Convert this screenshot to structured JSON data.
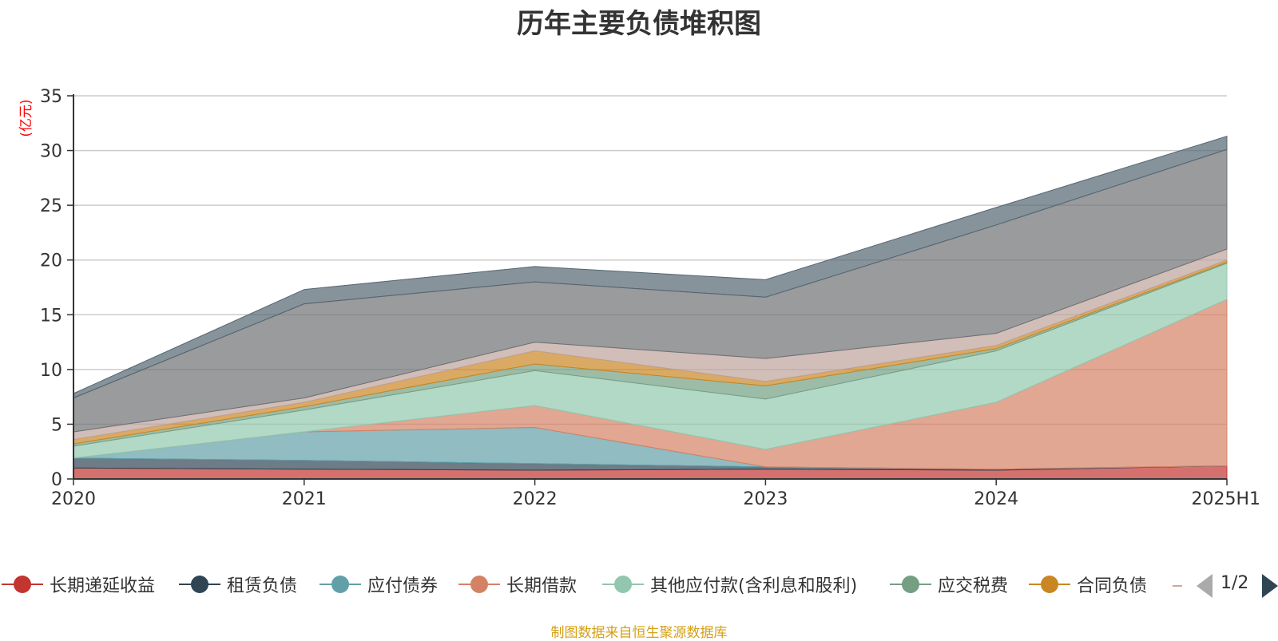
{
  "title": "历年主要负债堆积图",
  "source_note": "制图数据来自恒生聚源数据库",
  "pager": {
    "text": "1/2"
  },
  "chart_data": {
    "type": "area",
    "stacked": true,
    "title": "历年主要负债堆积图",
    "ylabel": "(亿元)",
    "ylim": [
      0,
      35
    ],
    "yticks": [
      0,
      5,
      10,
      15,
      20,
      25,
      30,
      35
    ],
    "grid": true,
    "legend_position": "bottom",
    "categories": [
      "2020",
      "2021",
      "2022",
      "2023",
      "2024",
      "2025H1"
    ],
    "series": [
      {
        "name": "长期递延收益",
        "color": "#c23531",
        "values": [
          1.0,
          0.9,
          0.8,
          0.9,
          0.8,
          1.2
        ]
      },
      {
        "name": "租赁负债",
        "color": "#2f4554",
        "values": [
          0.9,
          0.8,
          0.6,
          0.2,
          0.1,
          0.0
        ]
      },
      {
        "name": "应付债券",
        "color": "#61a0a8",
        "values": [
          0.0,
          2.6,
          3.3,
          0.0,
          0.0,
          0.0
        ]
      },
      {
        "name": "长期借款",
        "color": "#d48265",
        "values": [
          0.0,
          0.0,
          2.0,
          1.6,
          6.1,
          15.2
        ]
      },
      {
        "name": "其他应付款(含利息和股利)",
        "color": "#91c7ae",
        "values": [
          1.1,
          2.0,
          3.2,
          4.6,
          4.7,
          3.3
        ]
      },
      {
        "name": "应交税费",
        "color": "#749f83",
        "values": [
          0.2,
          0.3,
          0.6,
          1.2,
          0.2,
          0.1
        ]
      },
      {
        "name": "合同负债",
        "color": "#ca8622",
        "values": [
          0.4,
          0.4,
          1.2,
          0.4,
          0.3,
          0.2
        ]
      },
      {
        "color": "#bda29a",
        "values": [
          0.7,
          0.4,
          0.8,
          2.1,
          1.1,
          1.0
        ]
      },
      {
        "color": "#6e7074",
        "values": [
          3.1,
          8.6,
          5.5,
          5.6,
          9.9,
          9.1
        ]
      },
      {
        "color": "#546570",
        "values": [
          0.4,
          1.3,
          1.4,
          1.6,
          1.6,
          1.2
        ]
      }
    ]
  }
}
